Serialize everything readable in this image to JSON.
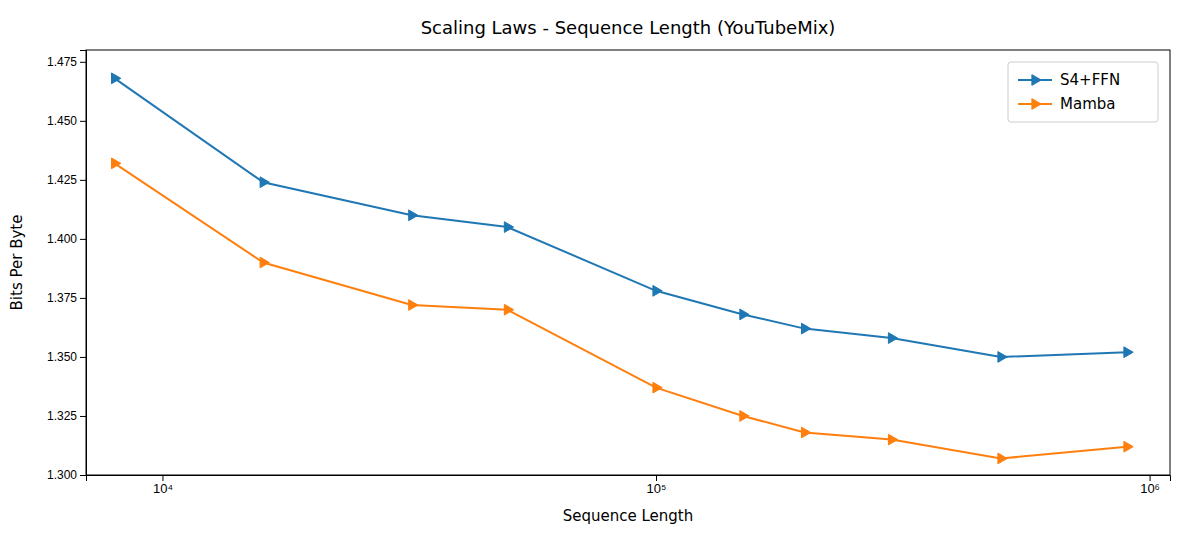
{
  "chart_data": {
    "type": "line",
    "title": "Scaling Laws - Sequence Length (YouTubeMix)",
    "xlabel": "Sequence Length",
    "ylabel": "Bits Per Byte",
    "x": [
      8000,
      16000,
      32000,
      50000,
      100000,
      150000,
      200000,
      300000,
      500000,
      900000
    ],
    "series": [
      {
        "name": "S4+FFN",
        "color": "#1f77b4",
        "marker": "triangle-right",
        "values": [
          1.468,
          1.424,
          1.41,
          1.405,
          1.378,
          1.368,
          1.362,
          1.358,
          1.35,
          1.352
        ]
      },
      {
        "name": "Mamba",
        "color": "#ff7f0e",
        "marker": "triangle-right",
        "values": [
          1.432,
          1.39,
          1.372,
          1.37,
          1.337,
          1.325,
          1.318,
          1.315,
          1.307,
          1.312
        ]
      }
    ],
    "log": "x",
    "xlim": [
      7000,
      1100000
    ],
    "xticks": [
      {
        "value": 10000,
        "label": "10⁴"
      },
      {
        "value": 100000,
        "label": "10⁵"
      },
      {
        "value": 1000000,
        "label": "10⁶"
      }
    ],
    "ylim": [
      1.3,
      1.48
    ],
    "yticks": [
      {
        "value": 1.3,
        "label": "1.300"
      },
      1.325,
      {
        "value": 1.35,
        "label": "1.350"
      },
      1.375,
      {
        "value": 1.4,
        "label": "1.400"
      },
      1.425,
      {
        "value": 1.45,
        "label": "1.450"
      },
      1.475
    ],
    "grid": false,
    "legend": "upper right"
  }
}
